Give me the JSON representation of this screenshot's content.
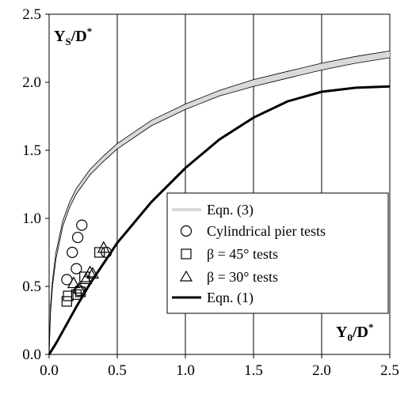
{
  "chart_data": {
    "type": "scatter",
    "xlabel_main": "Y",
    "xlabel_sub": "0",
    "xlabel_tail": "/D",
    "xlabel_sup": "*",
    "ylabel_main": "Y",
    "ylabel_sub": "S",
    "ylabel_tail": "/D",
    "ylabel_sup": "*",
    "xlim": [
      0,
      2.5
    ],
    "ylim": [
      0,
      2.5
    ],
    "xticks": [
      "0.0",
      "0.5",
      "1.0",
      "1.5",
      "2.0",
      "2.5"
    ],
    "yticks": [
      "0.0",
      "0.5",
      "1.0",
      "1.5",
      "2.0",
      "2.5"
    ],
    "grid": "vertical",
    "legend_position": "center-right",
    "series": [
      {
        "name": "Eqn. (3)",
        "kind": "band",
        "color": "#d9d9d9",
        "upper": [
          [
            0,
            0
          ],
          [
            0.01,
            0.35
          ],
          [
            0.025,
            0.55
          ],
          [
            0.05,
            0.75
          ],
          [
            0.1,
            0.98
          ],
          [
            0.15,
            1.12
          ],
          [
            0.2,
            1.22
          ],
          [
            0.3,
            1.36
          ],
          [
            0.4,
            1.46
          ],
          [
            0.5,
            1.55
          ],
          [
            0.75,
            1.72
          ],
          [
            1.0,
            1.84
          ],
          [
            1.25,
            1.94
          ],
          [
            1.5,
            2.02
          ],
          [
            1.75,
            2.08
          ],
          [
            2.0,
            2.14
          ],
          [
            2.25,
            2.19
          ],
          [
            2.5,
            2.23
          ]
        ],
        "lower": [
          [
            0,
            0
          ],
          [
            0.01,
            0.3
          ],
          [
            0.025,
            0.5
          ],
          [
            0.05,
            0.7
          ],
          [
            0.1,
            0.94
          ],
          [
            0.15,
            1.08
          ],
          [
            0.2,
            1.18
          ],
          [
            0.3,
            1.32
          ],
          [
            0.4,
            1.42
          ],
          [
            0.5,
            1.51
          ],
          [
            0.75,
            1.68
          ],
          [
            1.0,
            1.8
          ],
          [
            1.25,
            1.9
          ],
          [
            1.5,
            1.97
          ],
          [
            1.75,
            2.03
          ],
          [
            2.0,
            2.09
          ],
          [
            2.25,
            2.14
          ],
          [
            2.5,
            2.18
          ]
        ]
      },
      {
        "name": "Cylindrical pier tests",
        "kind": "points",
        "marker": "circle",
        "points": [
          [
            0.13,
            0.55
          ],
          [
            0.17,
            0.75
          ],
          [
            0.2,
            0.63
          ],
          [
            0.21,
            0.86
          ],
          [
            0.24,
            0.95
          ],
          [
            0.22,
            0.47
          ],
          [
            0.42,
            0.75
          ]
        ]
      },
      {
        "name": "β = 45° tests",
        "kind": "points",
        "marker": "square",
        "points": [
          [
            0.13,
            0.39
          ],
          [
            0.14,
            0.43
          ],
          [
            0.2,
            0.44
          ],
          [
            0.23,
            0.46
          ],
          [
            0.26,
            0.57
          ],
          [
            0.37,
            0.75
          ]
        ]
      },
      {
        "name": "β = 30° tests",
        "kind": "points",
        "marker": "triangle",
        "points": [
          [
            0.18,
            0.52
          ],
          [
            0.22,
            0.48
          ],
          [
            0.27,
            0.55
          ],
          [
            0.3,
            0.6
          ],
          [
            0.32,
            0.59
          ],
          [
            0.4,
            0.78
          ]
        ]
      },
      {
        "name": "Eqn. (1)",
        "kind": "line",
        "color": "#000000",
        "points": [
          [
            0,
            0
          ],
          [
            0.05,
            0.08
          ],
          [
            0.1,
            0.17
          ],
          [
            0.2,
            0.35
          ],
          [
            0.3,
            0.52
          ],
          [
            0.4,
            0.67
          ],
          [
            0.5,
            0.82
          ],
          [
            0.75,
            1.12
          ],
          [
            1.0,
            1.37
          ],
          [
            1.25,
            1.58
          ],
          [
            1.5,
            1.74
          ],
          [
            1.75,
            1.86
          ],
          [
            2.0,
            1.93
          ],
          [
            2.25,
            1.96
          ],
          [
            2.5,
            1.97
          ]
        ]
      }
    ]
  }
}
